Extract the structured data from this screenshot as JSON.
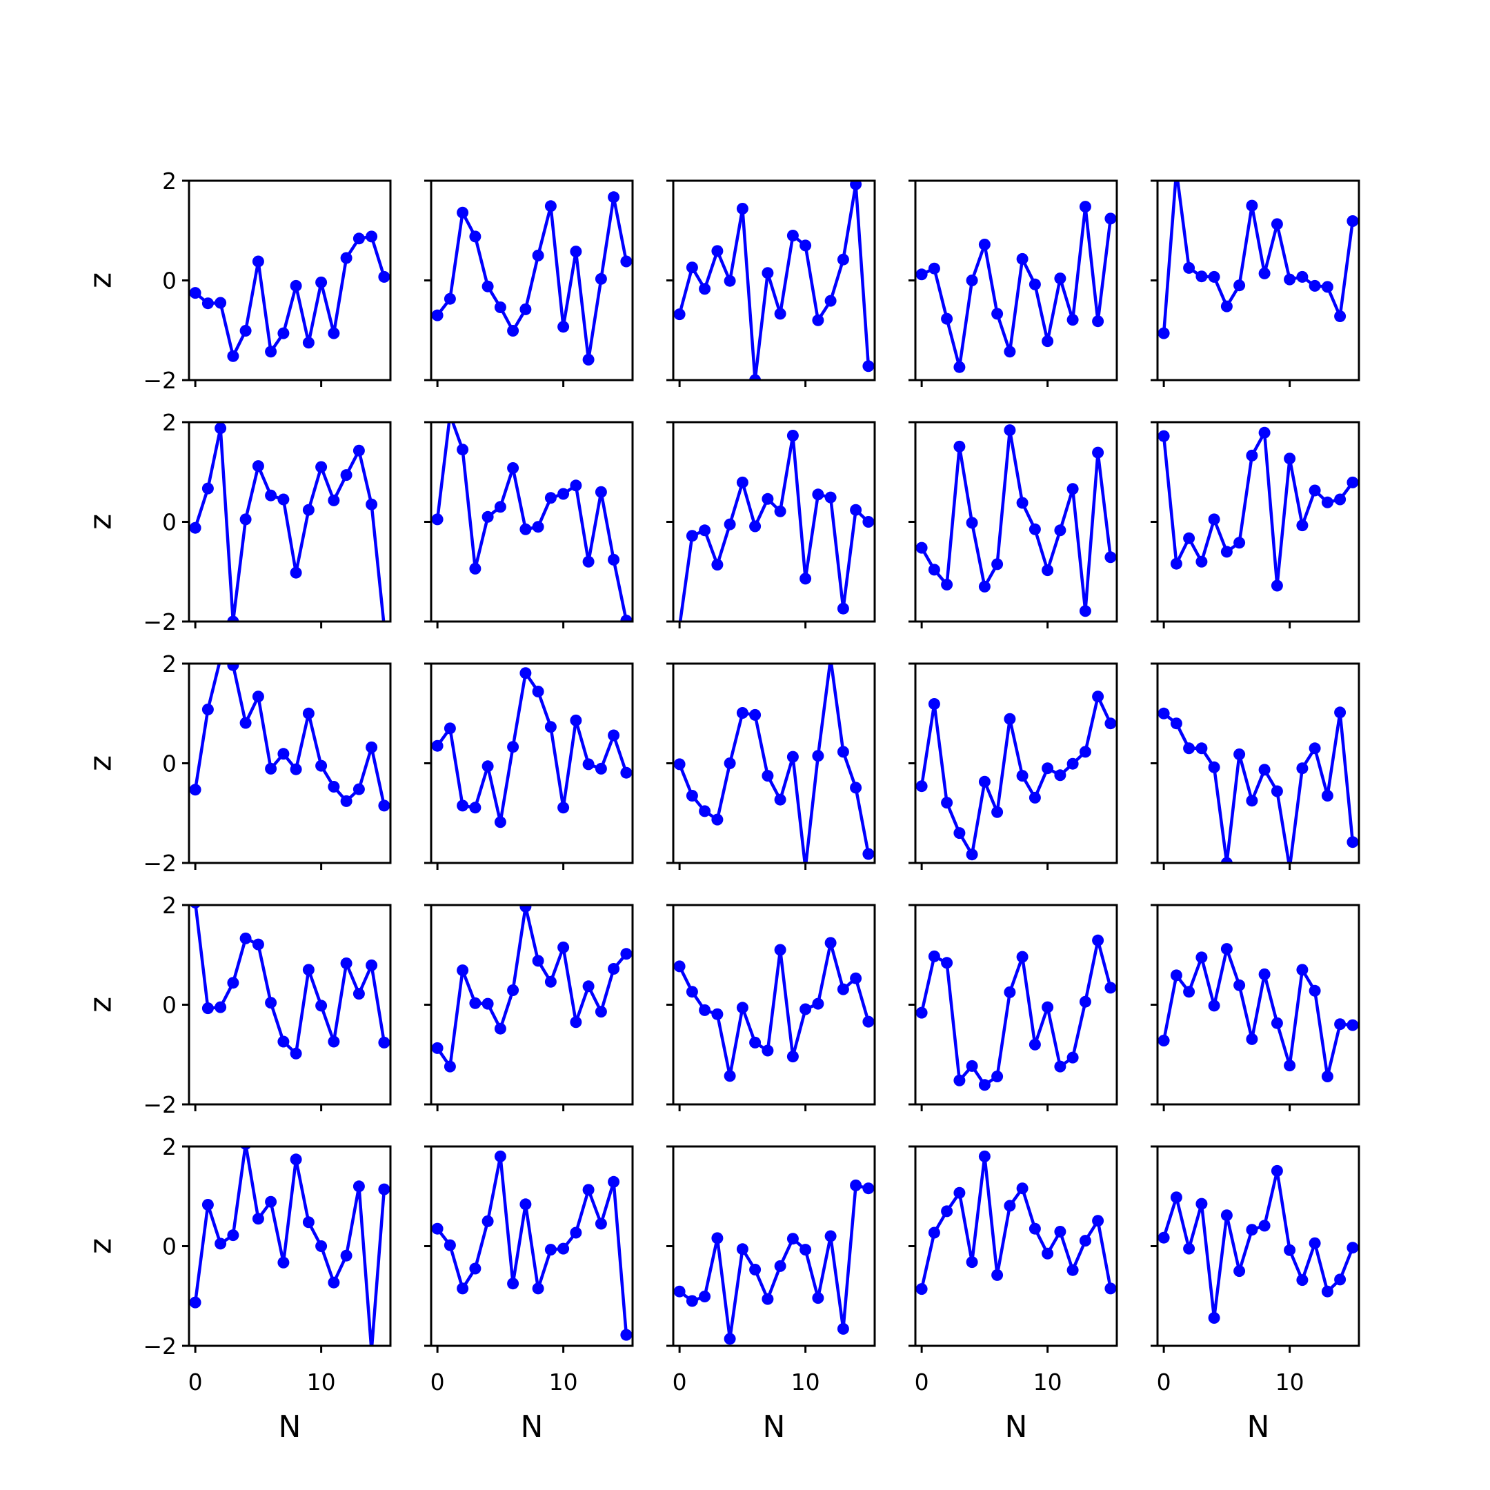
{
  "chart_data": {
    "type": "line",
    "layout": "5x5 small multiples, shared axes",
    "xlabel": "N",
    "ylabel": "z",
    "x_ticks": [
      "0",
      "10"
    ],
    "y_ticks": [
      "−2",
      "0",
      "2"
    ],
    "xlim": [
      -0.5,
      15.5
    ],
    "ylim": [
      -2,
      2
    ],
    "x": [
      0,
      1,
      2,
      3,
      4,
      5,
      6,
      7,
      8,
      9,
      10,
      11,
      12,
      13,
      14,
      15
    ],
    "series_color": "#0000ff",
    "marker": "circle",
    "grid": false,
    "panels": [
      {
        "values": [
          -0.25,
          -0.46,
          -0.45,
          -1.52,
          -1.01,
          0.38,
          -1.43,
          -1.06,
          -0.11,
          -1.25,
          -0.04,
          -1.06,
          0.45,
          0.84,
          0.88,
          0.07
        ]
      },
      {
        "values": [
          -0.7,
          -0.37,
          1.36,
          0.88,
          -0.12,
          -0.54,
          -1.01,
          -0.58,
          0.5,
          1.49,
          -0.93,
          0.58,
          -1.59,
          0.03,
          1.67,
          0.38
        ]
      },
      {
        "values": [
          -0.68,
          0.26,
          -0.17,
          0.59,
          -0.01,
          1.44,
          -2.0,
          0.15,
          -0.67,
          0.9,
          0.7,
          -0.8,
          -0.41,
          0.42,
          1.93,
          -1.72
        ]
      },
      {
        "values": [
          0.12,
          0.24,
          -0.77,
          -1.74,
          0.0,
          0.72,
          -0.67,
          -1.43,
          0.43,
          -0.08,
          -1.22,
          0.04,
          -0.79,
          1.48,
          -0.82,
          1.24
        ]
      },
      {
        "values": [
          -1.06,
          2.2,
          0.25,
          0.08,
          0.07,
          -0.52,
          -0.1,
          1.5,
          0.14,
          1.13,
          0.02,
          0.07,
          -0.11,
          -0.13,
          -0.72,
          1.19
        ]
      },
      {
        "values": [
          -0.12,
          0.67,
          1.88,
          -2.0,
          0.05,
          1.12,
          0.53,
          0.45,
          -1.02,
          0.24,
          1.1,
          0.43,
          0.94,
          1.43,
          0.35,
          -2.1
        ]
      },
      {
        "values": [
          0.05,
          2.15,
          1.45,
          -0.94,
          0.1,
          0.3,
          1.08,
          -0.15,
          -0.1,
          0.48,
          0.56,
          0.73,
          -0.8,
          0.6,
          -0.76,
          -1.98
        ]
      },
      {
        "values": [
          -2.1,
          -0.28,
          -0.17,
          -0.86,
          -0.05,
          0.79,
          -0.09,
          0.46,
          0.21,
          1.73,
          -1.14,
          0.55,
          0.49,
          -1.74,
          0.24,
          0.0
        ]
      },
      {
        "values": [
          -0.52,
          -0.96,
          -1.26,
          1.51,
          -0.02,
          -1.3,
          -0.85,
          1.84,
          0.38,
          -0.15,
          -0.97,
          -0.17,
          0.66,
          -1.79,
          1.39,
          -0.71
        ]
      },
      {
        "values": [
          1.72,
          -0.84,
          -0.33,
          -0.8,
          0.05,
          -0.6,
          -0.42,
          1.33,
          1.79,
          -1.28,
          1.27,
          -0.07,
          0.63,
          0.39,
          0.45,
          0.79
        ]
      },
      {
        "values": [
          -0.53,
          1.08,
          2.1,
          1.97,
          0.81,
          1.34,
          -0.11,
          0.19,
          -0.12,
          1.0,
          -0.05,
          -0.47,
          -0.76,
          -0.52,
          0.32,
          -0.85
        ]
      },
      {
        "values": [
          0.35,
          0.7,
          -0.85,
          -0.89,
          -0.06,
          -1.18,
          0.33,
          1.81,
          1.44,
          0.73,
          -0.89,
          0.86,
          -0.02,
          -0.11,
          0.56,
          -0.19
        ]
      },
      {
        "values": [
          -0.02,
          -0.65,
          -0.96,
          -1.13,
          0.0,
          1.01,
          0.97,
          -0.25,
          -0.73,
          0.13,
          -2.1,
          0.15,
          2.1,
          0.23,
          -0.49,
          -1.82
        ]
      },
      {
        "values": [
          -0.46,
          1.19,
          -0.79,
          -1.4,
          -1.83,
          -0.37,
          -0.98,
          0.89,
          -0.25,
          -0.69,
          -0.1,
          -0.24,
          -0.01,
          0.23,
          1.34,
          0.8
        ]
      },
      {
        "values": [
          1.0,
          0.8,
          0.3,
          0.3,
          -0.08,
          -2.0,
          0.18,
          -0.75,
          -0.13,
          -0.56,
          -2.1,
          -0.1,
          0.3,
          -0.65,
          1.02,
          -1.58
        ]
      },
      {
        "values": [
          2.05,
          -0.07,
          -0.05,
          0.44,
          1.33,
          1.21,
          0.04,
          -0.74,
          -0.98,
          0.7,
          -0.02,
          -0.74,
          0.83,
          0.22,
          0.79,
          -0.76
        ]
      },
      {
        "values": [
          -0.87,
          -1.24,
          0.69,
          0.03,
          0.02,
          -0.48,
          0.29,
          1.97,
          0.88,
          0.46,
          1.15,
          -0.35,
          0.37,
          -0.14,
          0.72,
          1.02
        ]
      },
      {
        "values": [
          0.77,
          0.26,
          -0.11,
          -0.19,
          -1.43,
          -0.06,
          -0.76,
          -0.92,
          1.1,
          -1.04,
          -0.09,
          0.02,
          1.24,
          0.31,
          0.53,
          -0.34
        ]
      },
      {
        "values": [
          -0.16,
          0.97,
          0.84,
          -1.52,
          -1.23,
          -1.61,
          -1.44,
          0.25,
          0.96,
          -0.8,
          -0.05,
          -1.24,
          -1.06,
          0.06,
          1.29,
          0.34
        ]
      },
      {
        "values": [
          -0.72,
          0.59,
          0.26,
          0.95,
          -0.02,
          1.12,
          0.39,
          -0.69,
          0.61,
          -0.37,
          -1.22,
          0.7,
          0.28,
          -1.44,
          -0.39,
          -0.41
        ]
      },
      {
        "values": [
          -1.13,
          0.83,
          0.05,
          0.22,
          2.05,
          0.55,
          0.89,
          -0.33,
          1.74,
          0.48,
          0.0,
          -0.73,
          -0.19,
          1.2,
          -2.1,
          1.14
        ]
      },
      {
        "values": [
          0.35,
          0.02,
          -0.85,
          -0.45,
          0.5,
          1.8,
          -0.75,
          0.84,
          -0.85,
          -0.07,
          -0.05,
          0.27,
          1.13,
          0.45,
          1.29,
          -1.78
        ]
      },
      {
        "values": [
          -0.91,
          -1.1,
          -1.01,
          0.16,
          -1.86,
          -0.06,
          -0.47,
          -1.06,
          -0.4,
          0.15,
          -0.07,
          -1.04,
          0.2,
          -1.66,
          1.22,
          1.16
        ]
      },
      {
        "values": [
          -0.86,
          0.27,
          0.7,
          1.07,
          -0.32,
          1.8,
          -0.58,
          0.81,
          1.16,
          0.35,
          -0.15,
          0.29,
          -0.48,
          0.11,
          0.51,
          -0.85
        ]
      },
      {
        "values": [
          0.17,
          0.98,
          -0.05,
          0.85,
          -1.44,
          0.62,
          -0.5,
          0.33,
          0.41,
          1.51,
          -0.08,
          -0.68,
          0.06,
          -0.91,
          -0.67,
          -0.03
        ]
      }
    ]
  }
}
